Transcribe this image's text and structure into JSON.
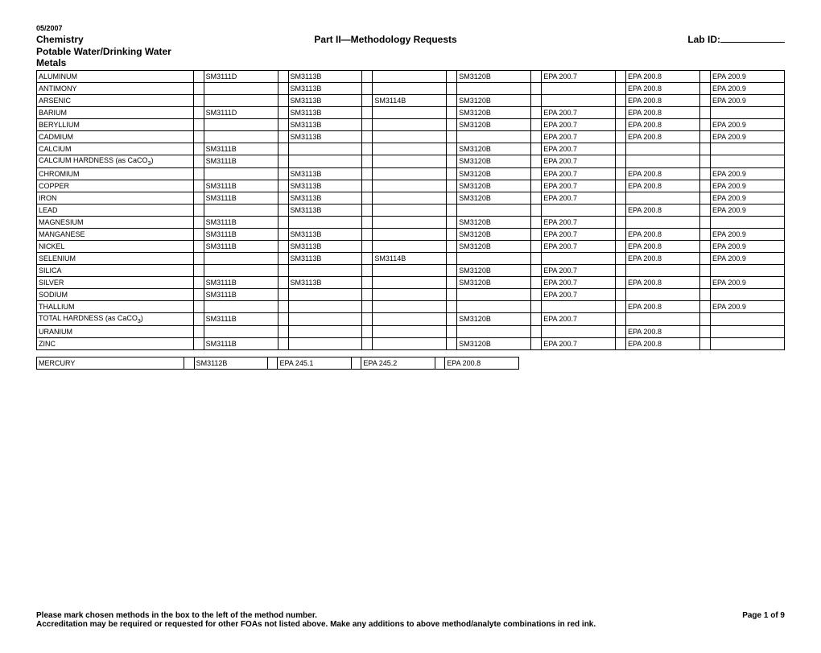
{
  "header": {
    "date": "05/2007",
    "left": "Chemistry",
    "center": "Part II—Methodology Requests",
    "right_label": "Lab ID:",
    "sub1": "Potable Water/Drinking Water",
    "sub2": "Metals"
  },
  "columns_order": [
    "c1",
    "c2",
    "c3",
    "c4",
    "c5",
    "c6",
    "c7"
  ],
  "rows": [
    {
      "name": "ALUMINUM",
      "c1": "SM3111D",
      "c2": "SM3113B",
      "c3": "",
      "c4": "SM3120B",
      "c5": "EPA 200.7",
      "c6": "EPA 200.8",
      "c7": "EPA 200.9"
    },
    {
      "name": "ANTIMONY",
      "c1": "",
      "c2": "SM3113B",
      "c3": "",
      "c4": "",
      "c5": "",
      "c6": "EPA 200.8",
      "c7": "EPA 200.9"
    },
    {
      "name": "ARSENIC",
      "c1": "",
      "c2": "SM3113B",
      "c3": "SM3114B",
      "c4": "SM3120B",
      "c5": "",
      "c6": "EPA 200.8",
      "c7": "EPA 200.9"
    },
    {
      "name": "BARIUM",
      "c1": "SM3111D",
      "c2": "SM3113B",
      "c3": "",
      "c4": "SM3120B",
      "c5": "EPA 200.7",
      "c6": "EPA 200.8",
      "c7": ""
    },
    {
      "name": "BERYLLIUM",
      "c1": "",
      "c2": "SM3113B",
      "c3": "",
      "c4": "SM3120B",
      "c5": "EPA 200.7",
      "c6": "EPA 200.8",
      "c7": "EPA 200.9"
    },
    {
      "name": "CADMIUM",
      "c1": "",
      "c2": "SM3113B",
      "c3": "",
      "c4": "",
      "c5": "EPA 200.7",
      "c6": "EPA 200.8",
      "c7": "EPA 200.9"
    },
    {
      "name": "CALCIUM",
      "c1": "SM3111B",
      "c2": "",
      "c3": "",
      "c4": "SM3120B",
      "c5": "EPA 200.7",
      "c6": "",
      "c7": ""
    },
    {
      "name": "CALCIUM HARDNESS (as CaCO_3)",
      "c1": "SM3111B",
      "c2": "",
      "c3": "",
      "c4": "SM3120B",
      "c5": "EPA 200.7",
      "c6": "",
      "c7": ""
    },
    {
      "name": "CHROMIUM",
      "c1": "",
      "c2": "SM3113B",
      "c3": "",
      "c4": "SM3120B",
      "c5": "EPA 200.7",
      "c6": "EPA 200.8",
      "c7": "EPA 200.9"
    },
    {
      "name": "COPPER",
      "c1": "SM3111B",
      "c2": "SM3113B",
      "c3": "",
      "c4": "SM3120B",
      "c5": "EPA 200.7",
      "c6": "EPA 200.8",
      "c7": "EPA 200.9"
    },
    {
      "name": "IRON",
      "c1": "SM3111B",
      "c2": "SM3113B",
      "c3": "",
      "c4": "SM3120B",
      "c5": "EPA 200.7",
      "c6": "",
      "c7": "EPA 200.9"
    },
    {
      "name": "LEAD",
      "c1": "",
      "c2": "SM3113B",
      "c3": "",
      "c4": "",
      "c5": "",
      "c6": "EPA 200.8",
      "c7": "EPA 200.9"
    },
    {
      "name": "MAGNESIUM",
      "c1": "SM3111B",
      "c2": "",
      "c3": "",
      "c4": "SM3120B",
      "c5": "EPA 200.7",
      "c6": "",
      "c7": ""
    },
    {
      "name": "MANGANESE",
      "c1": "SM3111B",
      "c2": "SM3113B",
      "c3": "",
      "c4": "SM3120B",
      "c5": "EPA 200.7",
      "c6": "EPA 200.8",
      "c7": "EPA 200.9"
    },
    {
      "name": "NICKEL",
      "c1": "SM3111B",
      "c2": "SM3113B",
      "c3": "",
      "c4": "SM3120B",
      "c5": "EPA 200.7",
      "c6": "EPA 200.8",
      "c7": "EPA 200.9"
    },
    {
      "name": "SELENIUM",
      "c1": "",
      "c2": "SM3113B",
      "c3": "SM3114B",
      "c4": "",
      "c5": "",
      "c6": "EPA 200.8",
      "c7": "EPA 200.9"
    },
    {
      "name": "SILICA",
      "c1": "",
      "c2": "",
      "c3": "",
      "c4": "SM3120B",
      "c5": "EPA 200.7",
      "c6": "",
      "c7": ""
    },
    {
      "name": "SILVER",
      "c1": "SM3111B",
      "c2": "SM3113B",
      "c3": "",
      "c4": "SM3120B",
      "c5": "EPA 200.7",
      "c6": "EPA 200.8",
      "c7": "EPA 200.9"
    },
    {
      "name": "SODIUM",
      "c1": "SM3111B",
      "c2": "",
      "c3": "",
      "c4": "",
      "c5": "EPA 200.7",
      "c6": "",
      "c7": ""
    },
    {
      "name": "THALLIUM",
      "c1": "",
      "c2": "",
      "c3": "",
      "c4": "",
      "c5": "",
      "c6": "EPA 200.8",
      "c7": "EPA 200.9"
    },
    {
      "name": "TOTAL HARDNESS (as CaCO_3)",
      "c1": "SM3111B",
      "c2": "",
      "c3": "",
      "c4": "SM3120B",
      "c5": "EPA 200.7",
      "c6": "",
      "c7": ""
    },
    {
      "name": "URANIUM",
      "c1": "",
      "c2": "",
      "c3": "",
      "c4": "",
      "c5": "",
      "c6": "EPA 200.8",
      "c7": ""
    },
    {
      "name": "ZINC",
      "c1": "SM3111B",
      "c2": "",
      "c3": "",
      "c4": "SM3120B",
      "c5": "EPA 200.7",
      "c6": "EPA 200.8",
      "c7": ""
    }
  ],
  "mercury": {
    "name": "MERCURY",
    "m1": "SM3112B",
    "m2": "EPA 245.1",
    "m3": "EPA 245.2",
    "m4": "EPA 200.8"
  },
  "footer": {
    "line1": "Please mark chosen methods in the box to the left of the method number.",
    "page": "Page 1 of 9",
    "line2": "Accreditation may be required or requested for other FOAs not listed above.  Make any additions to above method/analyte combinations in red ink."
  }
}
